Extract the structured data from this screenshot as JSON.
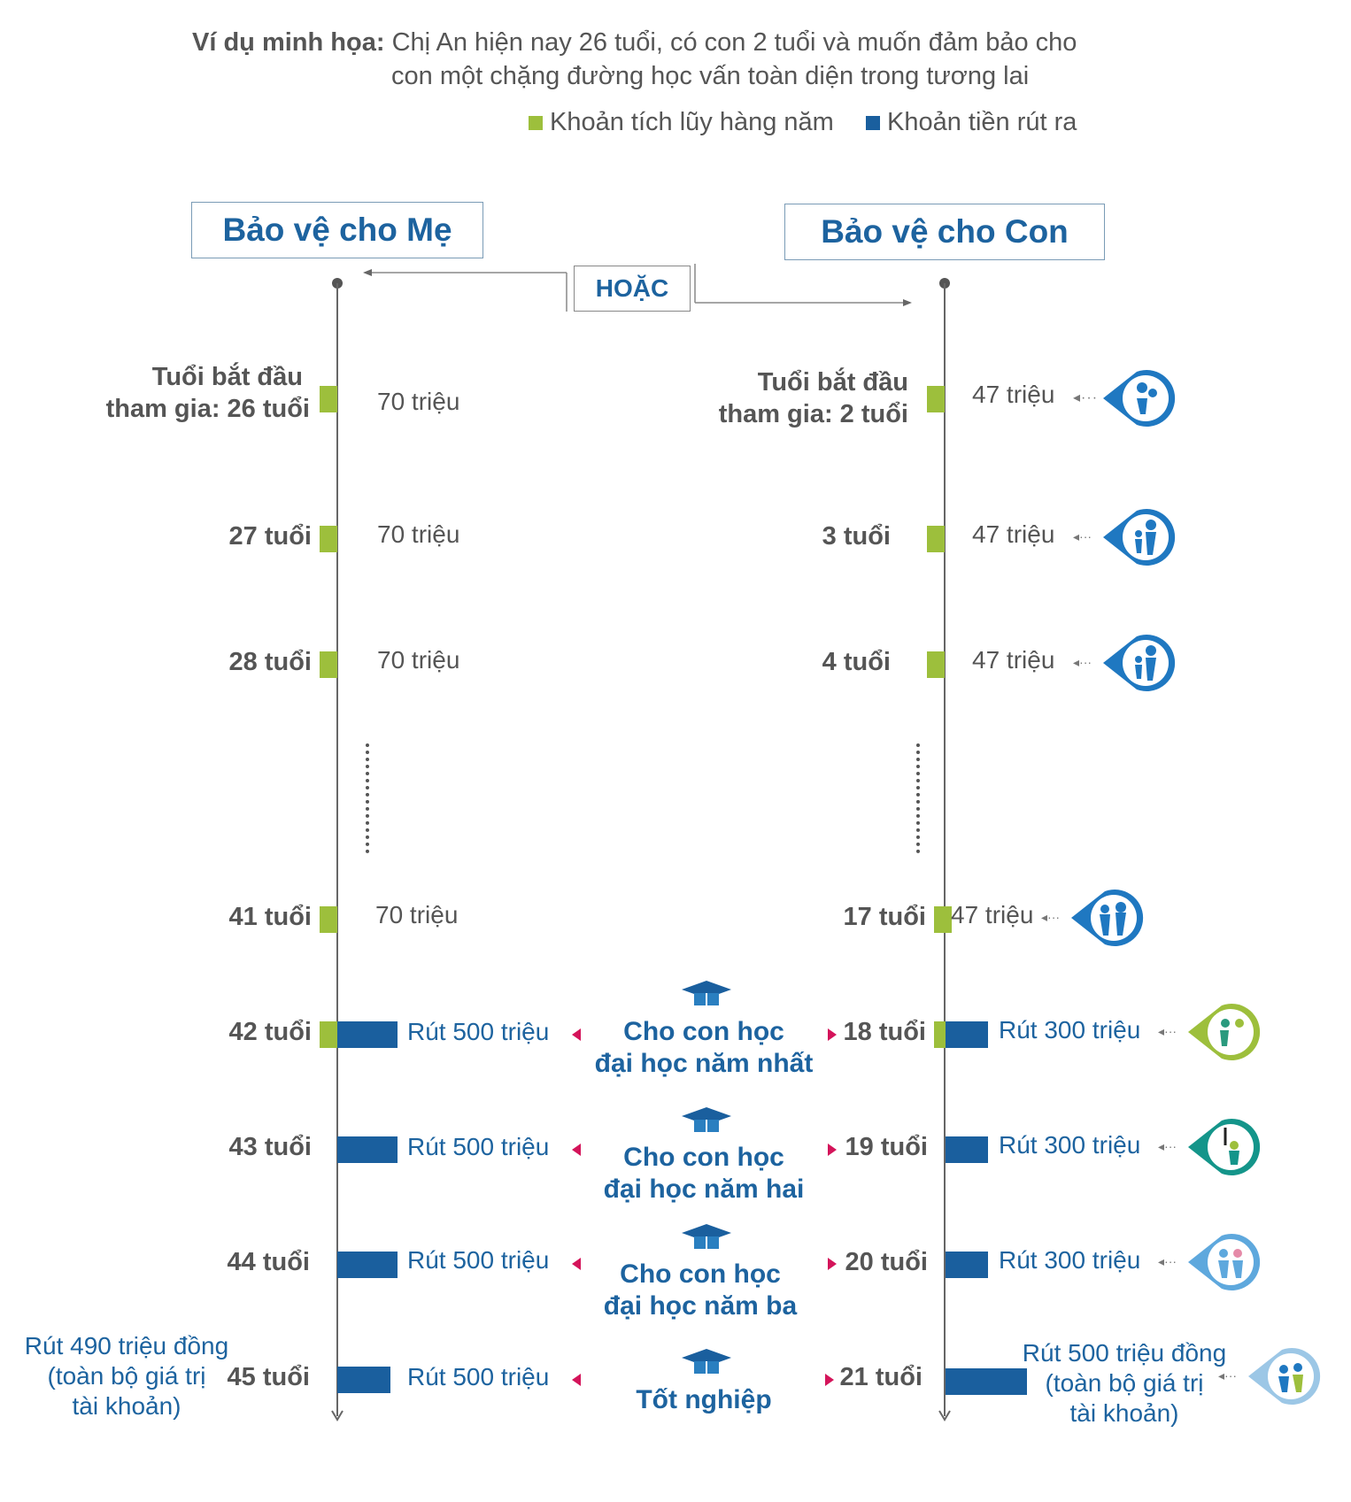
{
  "intro": {
    "lead": "Ví dụ minh họa:",
    "line1": "Chị An hiện nay 26 tuổi, có con 2 tuổi và muốn đảm bảo cho",
    "line2": "con một chặng đường học vấn toàn diện trong tương lai"
  },
  "legend": [
    {
      "label": "Khoản tích lũy hàng năm",
      "color": "#9dbf3c"
    },
    {
      "label": "Khoản tiền rút ra",
      "color": "#1a5f9e"
    }
  ],
  "sections": {
    "mother": "Bảo vệ cho Mẹ",
    "child": "Bảo vệ cho Con",
    "or": "HOẶC"
  },
  "mother_rows": [
    {
      "age_line1": "Tuổi bắt đầu",
      "age_line2": "tham gia: 26 tuổi",
      "amount": "70 triệu"
    },
    {
      "age": "27 tuổi",
      "amount": "70 triệu"
    },
    {
      "age": "28 tuổi",
      "amount": "70 triệu"
    },
    {
      "age": "41 tuổi",
      "amount": "70 triệu"
    },
    {
      "age": "42 tuổi",
      "withdraw": "Rút 500 triệu"
    },
    {
      "age": "43 tuổi",
      "withdraw": "Rút 500 triệu"
    },
    {
      "age": "44 tuổi",
      "withdraw": "Rút 500 triệu"
    },
    {
      "age": "45 tuổi",
      "withdraw": "Rút 500 triệu"
    }
  ],
  "child_rows": [
    {
      "age_line1": "Tuổi bắt đầu",
      "age_line2": "tham gia: 2 tuổi",
      "amount": "47 triệu"
    },
    {
      "age": "3 tuổi",
      "amount": "47 triệu"
    },
    {
      "age": "4 tuổi",
      "amount": "47 triệu"
    },
    {
      "age": "17 tuổi",
      "amount": "47 triệu"
    },
    {
      "age": "18 tuổi",
      "withdraw": "Rút 300 triệu"
    },
    {
      "age": "19 tuổi",
      "withdraw": "Rút 300 triệu"
    },
    {
      "age": "20 tuổi",
      "withdraw": "Rút 300 triệu"
    },
    {
      "age": "21 tuổi"
    }
  ],
  "milestones": [
    {
      "line1": "Cho con học",
      "line2": "đại học năm nhất"
    },
    {
      "line1": "Cho con học",
      "line2": "đại học năm hai"
    },
    {
      "line1": "Cho con học",
      "line2": "đại học năm ba"
    },
    {
      "line1": "Tốt nghiệp"
    }
  ],
  "final_notes": {
    "mother": {
      "line1": "Rút 490 triệu đồng",
      "line2": "(toàn bộ giá trị",
      "line3": "tài khoản)"
    },
    "child": {
      "line1": "Rút 500 triệu đồng",
      "line2": "(toàn bộ giá trị",
      "line3": "tài khoản)"
    }
  },
  "icons": [
    {
      "name": "mother-child-icon",
      "color": "#1f78c1"
    },
    {
      "name": "family-icon",
      "color": "#1f78c1"
    },
    {
      "name": "family-icon",
      "color": "#1f78c1"
    },
    {
      "name": "family-icon",
      "color": "#1f78c1"
    },
    {
      "name": "student-icon",
      "color": "#9dbf3c"
    },
    {
      "name": "study-clock-icon",
      "color": "#14958a"
    },
    {
      "name": "graduates-icon",
      "color": "#5ea8dd"
    },
    {
      "name": "graduation-icon",
      "color": "#9cc7e6"
    }
  ]
}
